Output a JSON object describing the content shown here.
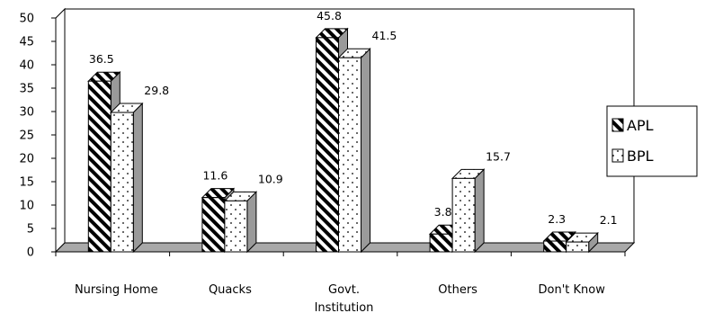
{
  "chart_data": {
    "type": "bar",
    "style": "3d-clustered-column",
    "categories": [
      "Nursing Home",
      "Quacks",
      "Govt.\nInstitution",
      "Others",
      "Don't Know"
    ],
    "series": [
      {
        "name": "APL",
        "pattern": "diagonal-stripes",
        "values": [
          36.5,
          11.6,
          45.8,
          3.8,
          2.3
        ]
      },
      {
        "name": "BPL",
        "pattern": "dots",
        "values": [
          29.8,
          10.9,
          41.5,
          15.7,
          2.1
        ]
      }
    ],
    "data_labels": [
      [
        "36.5",
        "11.6",
        "45.8",
        "3.8",
        "2.3"
      ],
      [
        "29.8",
        "10.9",
        "41.5",
        "15.7",
        "2.1"
      ]
    ],
    "yticks": [
      "0",
      "5",
      "10",
      "15",
      "20",
      "25",
      "30",
      "35",
      "40",
      "45",
      "50"
    ],
    "ylim": [
      0,
      50
    ],
    "title": "",
    "xlabel": "",
    "ylabel": "",
    "grid": false,
    "legend_position": "right",
    "colors": {
      "bar_fill": "#ffffff",
      "stroke": "#000000",
      "wall": "#ffffff",
      "floor": "#a9a9a9",
      "side": "#9a9a9a"
    }
  }
}
